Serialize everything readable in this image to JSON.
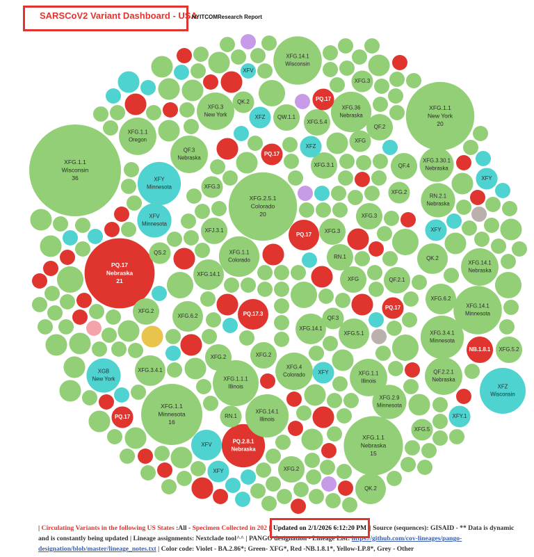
{
  "chart_data": {
    "type": "packed-bubble",
    "title": "SARSCoV2 Variant Dashboard - USA",
    "subtitle": "NYITCOMResearch Report",
    "palette": {
      "g": "#93cf77",
      "r": "#e0352f",
      "c": "#4fd3d1",
      "v": "#c89be9",
      "y": "#e8c44d",
      "s": "#bab1ad",
      "p": "#f5a3aa"
    },
    "bubbles": [
      {
        "label": "XFG.1.1",
        "location": "Wisconsin",
        "count": 36,
        "color": "g"
      },
      {
        "label": "PQ.17",
        "location": "Nebraska",
        "count": 21,
        "color": "r"
      },
      {
        "label": "XFG.2.5.1",
        "location": "Colorado",
        "count": 20,
        "color": "g"
      },
      {
        "label": "XFG.1.1",
        "location": "New York",
        "count": 20,
        "color": "g"
      },
      {
        "label": "XFG.1.1",
        "location": "Minnesota",
        "count": 16,
        "color": "g"
      },
      {
        "label": "XFG.1.1",
        "location": "Nebraska",
        "count": 15,
        "color": "g"
      },
      {
        "label": "XFG.14.1",
        "location": "Minnesota",
        "size": 10,
        "color": "g"
      },
      {
        "label": "XFG.14.1",
        "location": "Wisconsin",
        "size": 10,
        "color": "g"
      },
      {
        "label": "XFG.1.1.1",
        "location": "Illinois",
        "size": 9,
        "color": "g"
      },
      {
        "label": "XFZ",
        "location": "Wisconsin",
        "size": 9,
        "color": "c"
      },
      {
        "label": "PQ.2.8.1",
        "location": "Nebraska",
        "size": 8,
        "color": "r"
      },
      {
        "label": "XFY",
        "location": "Minnesota",
        "size": 8,
        "color": "c"
      },
      {
        "label": "XFG.3.4.1",
        "location": "Minnesota",
        "size": 8,
        "color": "g"
      },
      {
        "label": "XFG.14.1",
        "location": "Nebraska",
        "size": 6,
        "color": "g"
      },
      {
        "label": "XFG.14.1",
        "location": "Illinois",
        "size": 8,
        "color": "g"
      },
      {
        "label": "XFG.1.1",
        "location": "Colorado",
        "size": 7,
        "color": "g"
      },
      {
        "label": "XFG.36",
        "location": "Nebraska",
        "size": 7,
        "color": "g"
      },
      {
        "label": "XFG.1.1",
        "location": "Illinois",
        "size": 6,
        "color": "g"
      },
      {
        "label": "QF.2.2.1",
        "location": "Nebraska",
        "size": 6,
        "color": "g"
      },
      {
        "label": "XFG.2.9",
        "location": "Minnesota",
        "size": 5,
        "color": "g"
      },
      {
        "label": "XFG.3",
        "location": "New York",
        "size": 6,
        "color": "g"
      },
      {
        "label": "XFG.1.1",
        "location": "Oregon",
        "size": 6,
        "color": "g"
      },
      {
        "label": "QF.3",
        "location": "Nebraska",
        "size": 6,
        "color": "g"
      },
      {
        "label": "XFG.3.30.1",
        "location": "Nebraska",
        "size": 5,
        "color": "g"
      },
      {
        "label": "RN.2.1",
        "location": "Nebraska",
        "size": 5,
        "color": "g"
      },
      {
        "label": "XFG.4",
        "location": "Colorado",
        "size": 6,
        "color": "g"
      },
      {
        "label": "XFV",
        "location": "Minnesota",
        "size": 5,
        "color": "c"
      },
      {
        "label": "XGB",
        "location": "New York",
        "size": 5,
        "color": "c"
      },
      {
        "label": "PQ.17.3",
        "size": 4,
        "color": "r"
      },
      {
        "label": "PQ.17",
        "size": 4,
        "color": "r"
      },
      {
        "label": "XFG.14.1",
        "size": 4,
        "color": "g"
      },
      {
        "label": "XFG.6.2",
        "size": 4,
        "color": "g"
      },
      {
        "label": "XFG.3.4.1",
        "size": 4,
        "color": "g"
      },
      {
        "label": "XFG.6.2",
        "size": 4,
        "color": "g"
      },
      {
        "label": "XFG.5.1",
        "size": 4,
        "color": "g"
      },
      {
        "label": "XFG.14.1",
        "size": 4,
        "color": "g"
      },
      {
        "label": "QK.2",
        "size": 4,
        "color": "g"
      },
      {
        "label": "QK.2",
        "size": 4,
        "color": "g"
      },
      {
        "label": "QW.1.1",
        "size": 3,
        "color": "g"
      },
      {
        "label": "XFG.5.4",
        "size": 3,
        "color": "g"
      },
      {
        "label": "QF.2",
        "size": 3,
        "color": "g"
      },
      {
        "label": "QF.4",
        "size": 3,
        "color": "g"
      },
      {
        "label": "XFG.3.1",
        "size": 3,
        "color": "g"
      },
      {
        "label": "XFG.3",
        "size": 2,
        "color": "g"
      },
      {
        "label": "XFG.2",
        "size": 2,
        "color": "g"
      },
      {
        "label": "XFG.3",
        "size": 3,
        "color": "g"
      },
      {
        "label": "QF.2.1",
        "size": 3,
        "color": "g"
      },
      {
        "label": "XFG.3",
        "size": 3,
        "color": "g"
      },
      {
        "label": "QK.2",
        "size": 2,
        "color": "g"
      },
      {
        "label": "XFG",
        "size": 3,
        "color": "g"
      },
      {
        "label": "RN.1",
        "size": 3,
        "color": "g"
      },
      {
        "label": "XFG.2",
        "size": 3,
        "color": "g"
      },
      {
        "label": "XFG.2",
        "size": 3,
        "color": "g"
      },
      {
        "label": "XFG.2",
        "size": 3,
        "color": "g"
      },
      {
        "label": "XFG.5",
        "size": 2,
        "color": "g"
      },
      {
        "label": "XFG.2",
        "size": 3,
        "color": "g"
      },
      {
        "label": "XFJ.3.1",
        "size": 3,
        "color": "g"
      },
      {
        "label": "XFG.3",
        "size": 2,
        "color": "g"
      },
      {
        "label": "XFG",
        "size": 2,
        "color": "g"
      },
      {
        "label": "QS.2",
        "size": 2,
        "color": "g"
      },
      {
        "label": "RN.1",
        "size": 2,
        "color": "g"
      },
      {
        "label": "QF.3",
        "size": 2,
        "color": "g"
      },
      {
        "label": "NB.1.8.1",
        "size": 3,
        "color": "r"
      },
      {
        "label": "XFG.5.2",
        "size": 3,
        "color": "g"
      },
      {
        "label": "XFV",
        "size": 4,
        "color": "c"
      },
      {
        "label": "XFY",
        "size": 2,
        "color": "c"
      },
      {
        "label": "XFY",
        "size": 2,
        "color": "c"
      },
      {
        "label": "XFY",
        "size": 2,
        "color": "c"
      },
      {
        "label": "XFY",
        "size": 2,
        "color": "c"
      },
      {
        "label": "XFY.1",
        "size": 2,
        "color": "c"
      },
      {
        "label": "XFV",
        "size": 1,
        "color": "c"
      },
      {
        "label": "XFZ",
        "size": 2,
        "color": "c"
      },
      {
        "label": "XFZ",
        "size": 2,
        "color": "c"
      },
      {
        "label": "PQ.17",
        "size": 2,
        "color": "r"
      },
      {
        "label": "PQ.17",
        "size": 2,
        "color": "r"
      },
      {
        "label": "PQ.17",
        "size": 2,
        "color": "r"
      },
      {
        "label": "PQ.17",
        "size": 2,
        "color": "r"
      }
    ],
    "small_bubbles": {
      "sizes": [
        1,
        1,
        2,
        1,
        1,
        1,
        3,
        1,
        1,
        2,
        1,
        1,
        1,
        1,
        2,
        1,
        1,
        1,
        1,
        1,
        1,
        2,
        1,
        1,
        1,
        1,
        1,
        2,
        1,
        1,
        3,
        1,
        1,
        1,
        1,
        2,
        1,
        1,
        1,
        1,
        1,
        1,
        1,
        2,
        1,
        1,
        1,
        1,
        1,
        2,
        1,
        1,
        1,
        2,
        1,
        1,
        1,
        1,
        3,
        1,
        2,
        1,
        1,
        1,
        1,
        2,
        1,
        1,
        1,
        1,
        1,
        1,
        2,
        1,
        1,
        1,
        1,
        2,
        1,
        1,
        1,
        1,
        3,
        1,
        1,
        1,
        2,
        1,
        1,
        1,
        1,
        2,
        1,
        1,
        1,
        1,
        1,
        1,
        2,
        1,
        1,
        2,
        1,
        1,
        1,
        1,
        1,
        1,
        2,
        1,
        1,
        1,
        3,
        1,
        1,
        2,
        1,
        1,
        1,
        1,
        1,
        1,
        1,
        1,
        2,
        1,
        1,
        1,
        1,
        1,
        2,
        1,
        1,
        1,
        1,
        1,
        2,
        1,
        1,
        1,
        2,
        1,
        1,
        1,
        1,
        1,
        3,
        1,
        1,
        1,
        2,
        1,
        1,
        1,
        1,
        1,
        1,
        2,
        1,
        1,
        1,
        1,
        2,
        1,
        1,
        1,
        1,
        1,
        1,
        2,
        1,
        1,
        1,
        1,
        2,
        1,
        1,
        1,
        1,
        1,
        1,
        1,
        1,
        1,
        2,
        1,
        1,
        3,
        1,
        1,
        1,
        1,
        2,
        1,
        1,
        1,
        1,
        1,
        2,
        1,
        1,
        2,
        1,
        1,
        1,
        1,
        1,
        2,
        1,
        1,
        1,
        1,
        1,
        1,
        2,
        1,
        1,
        1,
        1,
        1,
        1,
        1,
        1,
        2,
        1,
        1,
        1,
        1,
        1,
        1,
        2,
        1,
        1,
        1,
        1,
        2,
        1,
        1,
        1,
        1,
        2,
        1,
        1,
        1,
        1,
        1,
        2,
        1,
        1,
        1,
        1,
        1,
        1,
        2,
        1,
        1,
        1,
        1,
        1,
        1
      ],
      "colors": [
        "g",
        "g",
        "r",
        "g",
        "g",
        "g",
        "g",
        "c",
        "g",
        "r",
        "g",
        "g",
        "g",
        "g",
        "r",
        "g",
        "g",
        "g",
        "c",
        "g",
        "g",
        "r",
        "g",
        "g",
        "g",
        "v",
        "g",
        "r",
        "g",
        "g",
        "g",
        "g",
        "c",
        "g",
        "g",
        "r",
        "g",
        "g",
        "g",
        "g",
        "r",
        "g",
        "g",
        "g",
        "g",
        "c",
        "g",
        "g",
        "r",
        "g",
        "g",
        "g",
        "g",
        "r",
        "g",
        "g",
        "g",
        "s",
        "g",
        "g",
        "g",
        "g",
        "r",
        "g",
        "c",
        "g",
        "g",
        "g",
        "g",
        "r",
        "g",
        "g",
        "r",
        "g",
        "g",
        "g",
        "c",
        "g",
        "g",
        "g",
        "g",
        "r",
        "g",
        "g",
        "g",
        "g",
        "y",
        "g",
        "g",
        "c",
        "g",
        "r",
        "g",
        "g",
        "g",
        "g",
        "r",
        "g",
        "g",
        "g",
        "r",
        "g",
        "g",
        "c",
        "g",
        "g",
        "g",
        "r",
        "g",
        "g",
        "v",
        "g",
        "g",
        "g",
        "r",
        "g",
        "g",
        "g",
        "c",
        "g",
        "g",
        "g",
        "r",
        "g",
        "g",
        "g",
        "g",
        "c",
        "g",
        "g",
        "r",
        "g",
        "g",
        "p",
        "g",
        "r",
        "g",
        "g",
        "g",
        "g",
        "g",
        "r",
        "g",
        "g",
        "c",
        "g",
        "g",
        "g",
        "r",
        "g",
        "g",
        "g",
        "s",
        "g",
        "r",
        "g",
        "c",
        "g",
        "g",
        "g",
        "r",
        "g",
        "g",
        "g",
        "g",
        "r",
        "g",
        "c",
        "g",
        "g",
        "g",
        "r",
        "g",
        "g",
        "g",
        "v",
        "g",
        "g",
        "r",
        "g",
        "g",
        "g",
        "c",
        "g",
        "r",
        "g",
        "g",
        "g",
        "g",
        "r",
        "g",
        "g",
        "g",
        "c",
        "g",
        "g",
        "r",
        "g",
        "g",
        "g",
        "g",
        "r",
        "g",
        "g",
        "g",
        "g",
        "c",
        "g",
        "r",
        "g",
        "g",
        "g",
        "g",
        "r",
        "g",
        "g",
        "g",
        "c",
        "g",
        "g",
        "r",
        "g",
        "g",
        "g",
        "c",
        "g",
        "g",
        "r",
        "g",
        "g",
        "g",
        "v",
        "g",
        "g",
        "r",
        "g",
        "g",
        "g",
        "g",
        "c",
        "g",
        "g",
        "r",
        "g",
        "g",
        "g",
        "c",
        "g",
        "g",
        "r",
        "g",
        "g",
        "g",
        "g",
        "r",
        "g",
        "g",
        "c",
        "g",
        "g"
      ]
    }
  },
  "footer": {
    "parts": [
      {
        "text": "| ",
        "style": "plain"
      },
      {
        "text": "Circulating Variants in the following US States",
        "style": "red"
      },
      {
        "text": " :All - ",
        "style": "plain"
      },
      {
        "text": "Specimen Collected in 202",
        "style": "red"
      },
      {
        "text": " | ",
        "style": "plain"
      },
      {
        "text": "Updated on 2/1/2026 6:12:20 PM",
        "style": "boxed"
      },
      {
        "text": " | Source (sequences): GISAID - ** Data is dynamic and is constantly being updated | Lineage assignments: Nextclade tool^^ | PANGO designation - Lineage List: ",
        "style": "plain"
      },
      {
        "text": "https://github.com/cov-lineages/pango-designation/blob/master/lineage_notes.txt",
        "style": "link"
      },
      {
        "text": " | Color code: Violet - BA.2.86*; Green- XFG*, Red -NB.1.8.1*, Yellow-LP.8*, Grey - Other",
        "style": "plain"
      }
    ]
  }
}
